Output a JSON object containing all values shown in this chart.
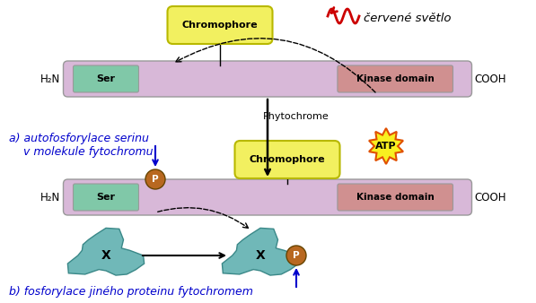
{
  "bg_color": "#ffffff",
  "cervene_svetlo": "červené světlo",
  "phytochrome_label": "Phytochrome",
  "chromophore_label": "Chromophore",
  "chromophore_color": "#f2f060",
  "chromophore_border": "#b8b800",
  "bar_color": "#d8b8d8",
  "bar_border": "#999999",
  "ser_color": "#80c8a8",
  "ser_border": "#999999",
  "kinase_color": "#d09090",
  "kinase_border": "#999999",
  "h2n_label": "H₂N",
  "cooh_label": "COOH",
  "ser_label": "Ser",
  "kinase_label": "Kinase domain",
  "atp_label": "ATP",
  "atp_color": "#f8f020",
  "atp_border": "#e05000",
  "p_color": "#b86820",
  "p_label": "P",
  "x_color": "#70b8b8",
  "x_label": "X",
  "text_a": "a) autofosforylace serinu\n    v molekule fytochromu",
  "text_b": "b) fosforylace jiného proteinu fytochromem",
  "text_color": "#0000cc",
  "blue_arrow": "#0000cc",
  "red_arrow": "#cc0000"
}
